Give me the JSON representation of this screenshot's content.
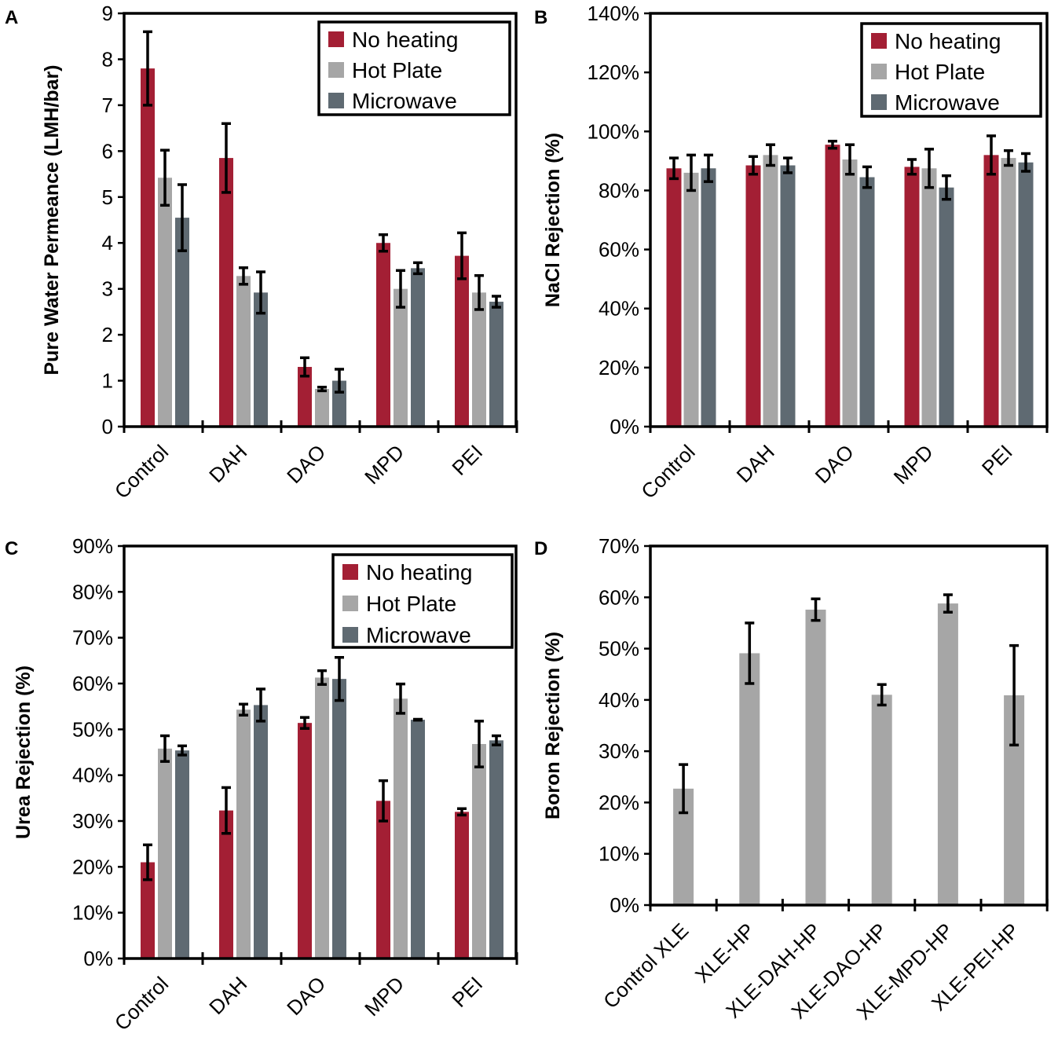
{
  "colors": {
    "no_heating": "#a31f34",
    "hot_plate": "#a6a6a6",
    "microwave": "#5f6a72"
  },
  "chart_data": [
    {
      "panel": "A",
      "type": "bar",
      "ylabel": "Pure Water Permeance (LMH/bar)",
      "ylim": [
        0,
        9
      ],
      "yticks": [
        "0",
        "1",
        "2",
        "3",
        "4",
        "5",
        "6",
        "7",
        "8",
        "9"
      ],
      "categories": [
        "Control",
        "DAH",
        "DAO",
        "MPD",
        "PEI"
      ],
      "legend": {
        "position": "top-right",
        "entries": [
          "No heating",
          "Hot Plate",
          "Microwave"
        ]
      },
      "series": [
        {
          "name": "No heating",
          "values": [
            7.8,
            5.85,
            1.3,
            4.0,
            3.72
          ],
          "errors": [
            0.8,
            0.75,
            0.2,
            0.18,
            0.5
          ]
        },
        {
          "name": "Hot Plate",
          "values": [
            5.42,
            3.28,
            0.82,
            3.0,
            2.92
          ],
          "errors": [
            0.6,
            0.18,
            0.04,
            0.4,
            0.37
          ]
        },
        {
          "name": "Microwave",
          "values": [
            4.55,
            2.92,
            1.0,
            3.45,
            2.72
          ],
          "errors": [
            0.72,
            0.45,
            0.25,
            0.12,
            0.12
          ]
        }
      ]
    },
    {
      "panel": "B",
      "type": "bar",
      "ylabel": "NaCl Rejection (%)",
      "ylim": [
        0,
        140
      ],
      "yticks": [
        "0%",
        "20%",
        "40%",
        "60%",
        "80%",
        "100%",
        "120%",
        "140%"
      ],
      "categories": [
        "Control",
        "DAH",
        "DAO",
        "MPD",
        "PEI"
      ],
      "legend": {
        "position": "top-right",
        "entries": [
          "No heating",
          "Hot Plate",
          "Microwave"
        ]
      },
      "series": [
        {
          "name": "No heating",
          "values": [
            87.5,
            88.5,
            95.5,
            88.0,
            92.0
          ],
          "errors": [
            3.5,
            3.0,
            1.2,
            2.5,
            6.5
          ]
        },
        {
          "name": "Hot Plate",
          "values": [
            86.0,
            92.0,
            90.5,
            87.5,
            91.0
          ],
          "errors": [
            6.0,
            3.5,
            5.0,
            6.5,
            2.5
          ]
        },
        {
          "name": "Microwave",
          "values": [
            87.5,
            88.5,
            84.5,
            81.0,
            89.5
          ],
          "errors": [
            4.5,
            2.5,
            3.5,
            4.0,
            3.0
          ]
        }
      ]
    },
    {
      "panel": "C",
      "type": "bar",
      "ylabel": "Urea Rejection (%)",
      "ylim": [
        0,
        90
      ],
      "yticks": [
        "0%",
        "10%",
        "20%",
        "30%",
        "40%",
        "50%",
        "60%",
        "70%",
        "80%",
        "90%"
      ],
      "categories": [
        "Control",
        "DAH",
        "DAO",
        "MPD",
        "PEI"
      ],
      "legend": {
        "position": "top-right",
        "entries": [
          "No heating",
          "Hot Plate",
          "Microwave"
        ]
      },
      "series": [
        {
          "name": "No heating",
          "values": [
            21.0,
            32.3,
            51.4,
            34.4,
            32.0
          ],
          "errors": [
            3.8,
            5.0,
            1.2,
            4.4,
            0.7
          ]
        },
        {
          "name": "Hot Plate",
          "values": [
            45.8,
            54.3,
            61.3,
            56.7,
            46.8
          ],
          "errors": [
            2.8,
            1.2,
            1.5,
            3.2,
            5.0
          ]
        },
        {
          "name": "Microwave",
          "values": [
            45.4,
            55.3,
            61.0,
            52.1,
            47.6
          ],
          "errors": [
            1.0,
            3.5,
            4.7,
            0.1,
            1.0
          ]
        }
      ]
    },
    {
      "panel": "D",
      "type": "bar",
      "ylabel": "Boron Rejection (%)",
      "ylim": [
        0,
        70
      ],
      "yticks": [
        "0%",
        "10%",
        "20%",
        "30%",
        "40%",
        "50%",
        "60%",
        "70%"
      ],
      "categories": [
        "Control XLE",
        "XLE-HP",
        "XLE-DAH-HP",
        "XLE-DAO-HP",
        "XLE-MPD-HP",
        "XLE-PEI-HP"
      ],
      "series": [
        {
          "name": "Hot Plate",
          "values": [
            22.7,
            49.1,
            57.6,
            41.0,
            58.8,
            40.9
          ],
          "errors": [
            4.7,
            5.9,
            2.1,
            2.0,
            1.7,
            9.7
          ]
        }
      ]
    }
  ]
}
